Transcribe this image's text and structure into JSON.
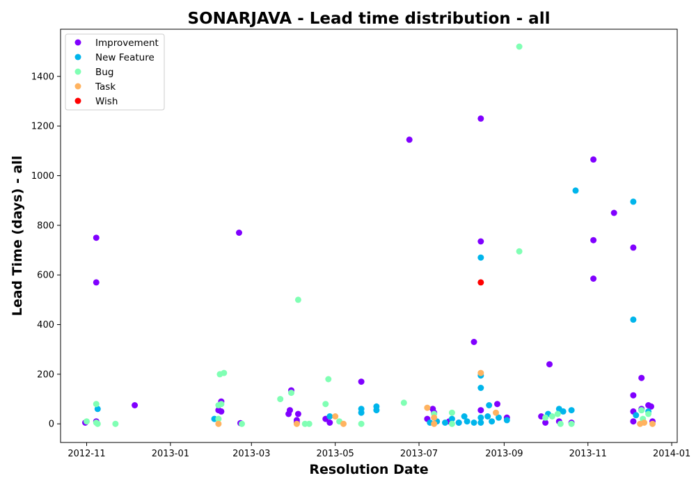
{
  "chart_data": {
    "type": "scatter",
    "title": "SONARJAVA - Lead time distribution - all",
    "xlabel": "Resolution Date",
    "ylabel": "Lead Time (days) - all",
    "xlim": [
      "2012-10-13",
      "2014-01-05"
    ],
    "ylim": [
      -75,
      1590
    ],
    "x_ticks": [
      "2012-11-01",
      "2013-01-01",
      "2013-03-01",
      "2013-05-01",
      "2013-07-01",
      "2013-09-01",
      "2013-11-01",
      "2014-01-01"
    ],
    "x_tick_labels": [
      "2012-11",
      "2013-01",
      "2013-03",
      "2013-05",
      "2013-07",
      "2013-09",
      "2013-11",
      "2014-01"
    ],
    "y_ticks": [
      0,
      200,
      400,
      600,
      800,
      1000,
      1200,
      1400
    ],
    "grid": false,
    "legend_position": "top-left",
    "series": [
      {
        "name": "Improvement",
        "color": "#8000ff",
        "points": [
          [
            "2012-10-31",
            5
          ],
          [
            "2012-11-08",
            750
          ],
          [
            "2012-11-08",
            570
          ],
          [
            "2012-11-08",
            10
          ],
          [
            "2012-12-06",
            75
          ],
          [
            "2013-02-05",
            55
          ],
          [
            "2013-02-07",
            90
          ],
          [
            "2013-02-07",
            50
          ],
          [
            "2013-02-20",
            770
          ],
          [
            "2013-02-21",
            3
          ],
          [
            "2013-03-28",
            40
          ],
          [
            "2013-03-29",
            55
          ],
          [
            "2013-03-30",
            135
          ],
          [
            "2013-04-03",
            5
          ],
          [
            "2013-04-03",
            15
          ],
          [
            "2013-04-04",
            40
          ],
          [
            "2013-04-24",
            20
          ],
          [
            "2013-04-27",
            5
          ],
          [
            "2013-05-20",
            170
          ],
          [
            "2013-06-24",
            1145
          ],
          [
            "2013-07-07",
            20
          ],
          [
            "2013-07-11",
            60
          ],
          [
            "2013-07-12",
            45
          ],
          [
            "2013-07-23",
            10
          ],
          [
            "2013-07-30",
            5
          ],
          [
            "2013-08-10",
            330
          ],
          [
            "2013-08-15",
            1230
          ],
          [
            "2013-08-15",
            735
          ],
          [
            "2013-08-15",
            55
          ],
          [
            "2013-08-27",
            80
          ],
          [
            "2013-09-03",
            25
          ],
          [
            "2013-09-28",
            30
          ],
          [
            "2013-10-01",
            5
          ],
          [
            "2013-10-04",
            240
          ],
          [
            "2013-10-11",
            10
          ],
          [
            "2013-10-20",
            5
          ],
          [
            "2013-11-05",
            1065
          ],
          [
            "2013-11-05",
            740
          ],
          [
            "2013-11-05",
            585
          ],
          [
            "2013-11-20",
            850
          ],
          [
            "2013-12-04",
            710
          ],
          [
            "2013-12-04",
            115
          ],
          [
            "2013-12-04",
            50
          ],
          [
            "2013-12-04",
            10
          ],
          [
            "2013-12-10",
            185
          ],
          [
            "2013-12-10",
            60
          ],
          [
            "2013-12-15",
            75
          ],
          [
            "2013-12-17",
            70
          ],
          [
            "2013-12-18",
            10
          ]
        ]
      },
      {
        "name": "New Feature",
        "color": "#00b5eb",
        "points": [
          [
            "2012-11-09",
            60
          ],
          [
            "2013-02-02",
            20
          ],
          [
            "2013-04-27",
            30
          ],
          [
            "2013-05-20",
            60
          ],
          [
            "2013-05-20",
            45
          ],
          [
            "2013-05-31",
            70
          ],
          [
            "2013-05-31",
            55
          ],
          [
            "2013-07-09",
            5
          ],
          [
            "2013-07-14",
            10
          ],
          [
            "2013-07-20",
            5
          ],
          [
            "2013-07-25",
            20
          ],
          [
            "2013-07-30",
            5
          ],
          [
            "2013-08-03",
            30
          ],
          [
            "2013-08-05",
            10
          ],
          [
            "2013-08-10",
            5
          ],
          [
            "2013-08-15",
            670
          ],
          [
            "2013-08-15",
            195
          ],
          [
            "2013-08-15",
            145
          ],
          [
            "2013-08-15",
            25
          ],
          [
            "2013-08-15",
            5
          ],
          [
            "2013-08-20",
            30
          ],
          [
            "2013-08-21",
            75
          ],
          [
            "2013-08-23",
            10
          ],
          [
            "2013-08-28",
            25
          ],
          [
            "2013-09-03",
            15
          ],
          [
            "2013-10-03",
            40
          ],
          [
            "2013-10-11",
            60
          ],
          [
            "2013-10-14",
            50
          ],
          [
            "2013-10-20",
            55
          ],
          [
            "2013-10-23",
            940
          ],
          [
            "2013-12-04",
            895
          ],
          [
            "2013-12-04",
            420
          ],
          [
            "2013-12-06",
            35
          ],
          [
            "2013-12-10",
            55
          ],
          [
            "2013-12-15",
            50
          ]
        ]
      },
      {
        "name": "Bug",
        "color": "#80ffb4",
        "points": [
          [
            "2012-11-01",
            10
          ],
          [
            "2012-11-08",
            80
          ],
          [
            "2012-11-08",
            5
          ],
          [
            "2012-11-09",
            0
          ],
          [
            "2012-11-22",
            0
          ],
          [
            "2013-02-05",
            75
          ],
          [
            "2013-02-05",
            20
          ],
          [
            "2013-02-06",
            200
          ],
          [
            "2013-02-07",
            80
          ],
          [
            "2013-02-09",
            205
          ],
          [
            "2013-02-22",
            0
          ],
          [
            "2013-03-22",
            100
          ],
          [
            "2013-03-30",
            125
          ],
          [
            "2013-04-04",
            500
          ],
          [
            "2013-04-09",
            0
          ],
          [
            "2013-04-12",
            0
          ],
          [
            "2013-04-24",
            80
          ],
          [
            "2013-04-26",
            180
          ],
          [
            "2013-05-04",
            10
          ],
          [
            "2013-05-20",
            0
          ],
          [
            "2013-06-20",
            85
          ],
          [
            "2013-07-12",
            40
          ],
          [
            "2013-07-25",
            45
          ],
          [
            "2013-07-25",
            0
          ],
          [
            "2013-09-12",
            1520
          ],
          [
            "2013-09-12",
            695
          ],
          [
            "2013-10-01",
            25
          ],
          [
            "2013-10-06",
            30
          ],
          [
            "2013-10-10",
            40
          ],
          [
            "2013-10-12",
            0
          ],
          [
            "2013-10-20",
            0
          ],
          [
            "2013-12-10",
            55
          ],
          [
            "2013-12-11",
            20
          ],
          [
            "2013-12-15",
            40
          ]
        ]
      },
      {
        "name": "Task",
        "color": "#ffb360",
        "points": [
          [
            "2013-02-05",
            0
          ],
          [
            "2013-04-03",
            0
          ],
          [
            "2013-05-01",
            30
          ],
          [
            "2013-05-07",
            0
          ],
          [
            "2013-07-07",
            65
          ],
          [
            "2013-07-12",
            25
          ],
          [
            "2013-07-12",
            0
          ],
          [
            "2013-08-15",
            205
          ],
          [
            "2013-08-26",
            45
          ],
          [
            "2013-12-09",
            0
          ],
          [
            "2013-12-12",
            5
          ],
          [
            "2013-12-18",
            0
          ]
        ]
      },
      {
        "name": "Wish",
        "color": "#ff0000",
        "points": [
          [
            "2013-08-15",
            570
          ]
        ]
      }
    ]
  }
}
